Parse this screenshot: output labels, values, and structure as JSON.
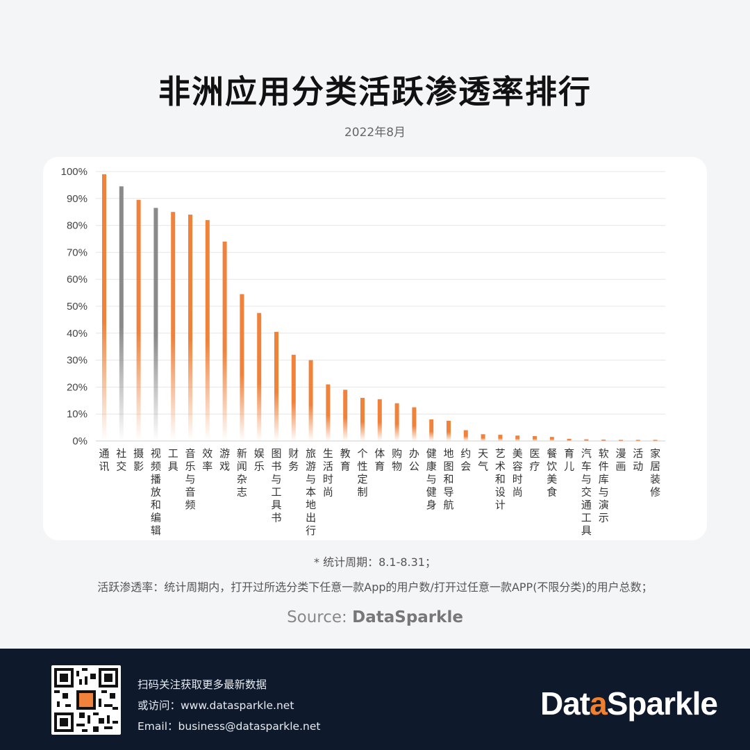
{
  "title": "非洲应用分类活跃渗透率排行",
  "subtitle": "2022年8月",
  "chart_data": {
    "type": "bar",
    "ylim": [
      0,
      100
    ],
    "yticks": [
      "0%",
      "10%",
      "20%",
      "30%",
      "40%",
      "50%",
      "60%",
      "70%",
      "80%",
      "90%",
      "100%"
    ],
    "grid": true,
    "categories": [
      "通讯",
      "社交",
      "摄影",
      "视频播放和编辑",
      "工具",
      "音乐与音频",
      "效率",
      "游戏",
      "新闻杂志",
      "娱乐",
      "图书与工具书",
      "财务",
      "旅游与本地出行",
      "生活时尚",
      "教育",
      "个性定制",
      "体育",
      "购物",
      "办公",
      "健康与健身",
      "地图和导航",
      "约会",
      "天气",
      "艺术和设计",
      "美容时尚",
      "医疗",
      "餐饮美食",
      "育儿",
      "汽车与交通工具",
      "软件库与演示",
      "漫画",
      "活动",
      "家居装修"
    ],
    "values": [
      99,
      94.5,
      89.5,
      86.5,
      85,
      84,
      82,
      74,
      54.5,
      47.5,
      40.5,
      32,
      30,
      21,
      19,
      16,
      15.5,
      14,
      12.5,
      8,
      7.5,
      4,
      2.5,
      2.3,
      2,
      1.8,
      1.5,
      0.8,
      0.6,
      0.5,
      0.4,
      0.4,
      0.4
    ],
    "highlight": [
      "社交",
      "视频播放和编辑"
    ],
    "colors": {
      "bar": "#f0823c",
      "highlight": "#8a8a8a",
      "grid": "#e6e6e6",
      "tick": "#444444"
    }
  },
  "notes": {
    "period": "*  统计周期：8.1-8.31；",
    "definition": "活跃渗透率：统计周期内，打开过所选分类下任意一款App的用户数/打开过任意一款APP(不限分类)的用户总数；"
  },
  "source": {
    "label": "Source: ",
    "name": "DataSparkle"
  },
  "footer": {
    "scan_text": "扫码关注获取更多最新数据",
    "visit": "或访问：www.datasparkle.net",
    "email": "Email：business@datasparkle.net",
    "logo_prefix": "Dat",
    "logo_mid": "a",
    "logo_suffix": "Sparkle"
  }
}
